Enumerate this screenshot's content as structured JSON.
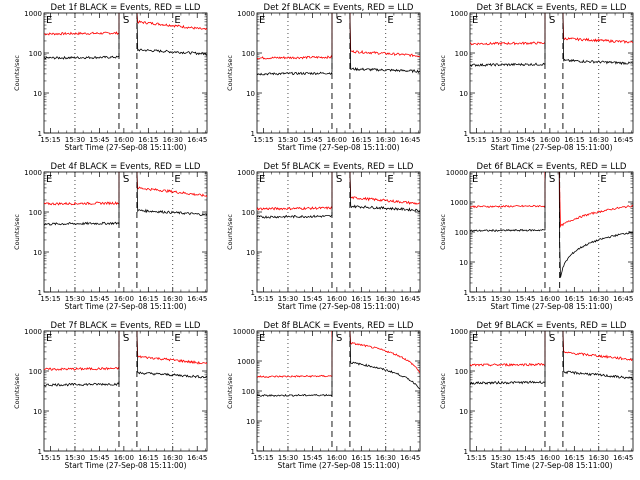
{
  "figure": {
    "xlabel": "Start Time (27-Sep-08 15:11:00)",
    "ylabel": "Counts/sec",
    "x_ticks": [
      "15:15",
      "15:30",
      "15:45",
      "16:00",
      "16:15",
      "16:30",
      "16:45"
    ],
    "colors": {
      "events": "#000000",
      "lld": "#ff0000",
      "axes": "#000000"
    },
    "marker_labels": {
      "start": "E",
      "saa": "S",
      "end": "E"
    }
  },
  "chart_data": [
    {
      "type": "line",
      "title": "Det 1f BLACK = Events, RED = LLD",
      "yscale": "log",
      "ylim": [
        1,
        1000
      ],
      "y_ticks": [
        "1",
        "10",
        "100",
        "1000"
      ],
      "gap_minutes": [
        46,
        57
      ],
      "events_levels": {
        "before": 75,
        "after": 120,
        "after_end": 95
      },
      "lld_levels": {
        "before": 300,
        "after": 600,
        "after_end": 380
      },
      "markers": [
        "E",
        "S",
        "E"
      ]
    },
    {
      "type": "line",
      "title": "Det 2f BLACK = Events, RED = LLD",
      "yscale": "log",
      "ylim": [
        1,
        1000
      ],
      "y_ticks": [
        "1",
        "10",
        "100",
        "1000"
      ],
      "gap_minutes": [
        46,
        57
      ],
      "events_levels": {
        "before": 30,
        "after": 40,
        "after_end": 35
      },
      "lld_levels": {
        "before": 75,
        "after": 110,
        "after_end": 85
      },
      "markers": [
        "E",
        "S",
        "E"
      ]
    },
    {
      "type": "line",
      "title": "Det 3f BLACK = Events, RED = LLD",
      "yscale": "log",
      "ylim": [
        1,
        1000
      ],
      "y_ticks": [
        "1",
        "10",
        "100",
        "1000"
      ],
      "gap_minutes": [
        46,
        57
      ],
      "events_levels": {
        "before": 50,
        "after": 65,
        "after_end": 55
      },
      "lld_levels": {
        "before": 170,
        "after": 230,
        "after_end": 185
      },
      "markers": [
        "E",
        "S",
        "E"
      ]
    },
    {
      "type": "line",
      "title": "Det 4f BLACK = Events, RED = LLD",
      "yscale": "log",
      "ylim": [
        1,
        1000
      ],
      "y_ticks": [
        "1",
        "10",
        "100",
        "1000"
      ],
      "gap_minutes": [
        46,
        57
      ],
      "events_levels": {
        "before": 50,
        "after": 110,
        "after_end": 85
      },
      "lld_levels": {
        "before": 160,
        "after": 400,
        "after_end": 250
      },
      "markers": [
        "E",
        "S",
        "E"
      ]
    },
    {
      "type": "line",
      "title": "Det 5f BLACK = Events, RED = LLD",
      "yscale": "log",
      "ylim": [
        1,
        1000
      ],
      "y_ticks": [
        "1",
        "10",
        "100",
        "1000"
      ],
      "gap_minutes": [
        46,
        57
      ],
      "events_levels": {
        "before": 75,
        "after": 140,
        "after_end": 110
      },
      "lld_levels": {
        "before": 120,
        "after": 230,
        "after_end": 160
      },
      "markers": [
        "E",
        "S",
        "E"
      ]
    },
    {
      "type": "line",
      "title": "Det 6f BLACK = Events, RED = LLD",
      "yscale": "log",
      "ylim": [
        1,
        10000
      ],
      "y_ticks": [
        "1",
        "10",
        "100",
        "1000",
        "10000"
      ],
      "gap_minutes": [
        46,
        55
      ],
      "events_levels": {
        "before": 110,
        "after": 2,
        "after_end": 100
      },
      "lld_levels": {
        "before": 700,
        "after": 150,
        "after_end": 750
      },
      "markers": [
        "E",
        "S",
        "E"
      ]
    },
    {
      "type": "line",
      "title": "Det 7f BLACK = Events, RED = LLD",
      "yscale": "log",
      "ylim": [
        1,
        1000
      ],
      "y_ticks": [
        "1",
        "10",
        "100",
        "1000"
      ],
      "gap_minutes": [
        46,
        57
      ],
      "events_levels": {
        "before": 45,
        "after": 90,
        "after_end": 70
      },
      "lld_levels": {
        "before": 110,
        "after": 230,
        "after_end": 150
      },
      "markers": [
        "E",
        "S",
        "E"
      ]
    },
    {
      "type": "line",
      "title": "Det 8f BLACK = Events, RED = LLD",
      "yscale": "log",
      "ylim": [
        1,
        10000
      ],
      "y_ticks": [
        "1",
        "10",
        "100",
        "1000",
        "10000"
      ],
      "gap_minutes": [
        46,
        57
      ],
      "events_levels": {
        "before": 70,
        "after": 900,
        "after_end": 120
      },
      "lld_levels": {
        "before": 300,
        "after": 4000,
        "after_end": 400
      },
      "markers": [
        "E",
        "S",
        "E"
      ]
    },
    {
      "type": "line",
      "title": "Det 9f BLACK = Events, RED = LLD",
      "yscale": "log",
      "ylim": [
        1,
        1000
      ],
      "y_ticks": [
        "1",
        "10",
        "100",
        "1000"
      ],
      "gap_minutes": [
        46,
        57
      ],
      "events_levels": {
        "before": 50,
        "after": 95,
        "after_end": 65
      },
      "lld_levels": {
        "before": 140,
        "after": 290,
        "after_end": 190
      },
      "markers": [
        "E",
        "S",
        "E"
      ]
    }
  ]
}
